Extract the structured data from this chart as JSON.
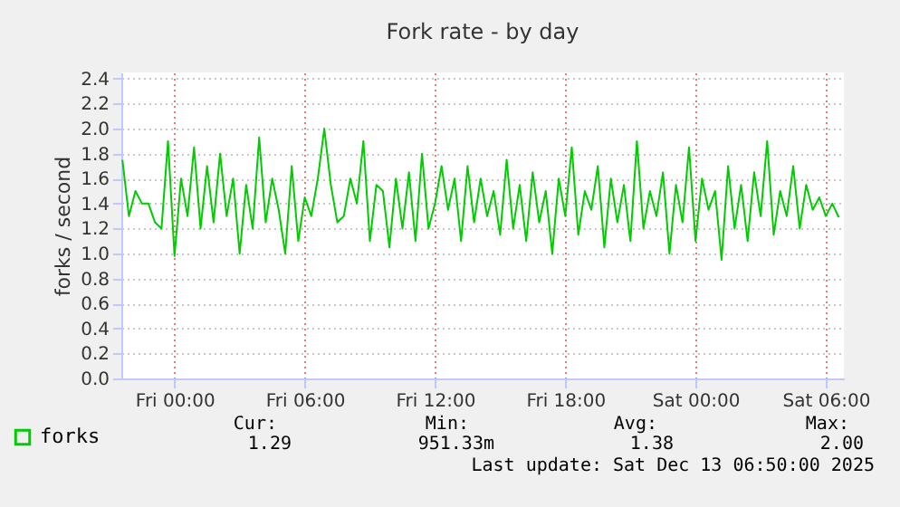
{
  "chart_data": {
    "type": "line",
    "title": "Fork rate - by day",
    "ylabel": "forks / second",
    "x": [
      "2025-12-11T21:36",
      "2025-12-11T21:54",
      "2025-12-11T22:12",
      "2025-12-11T22:30",
      "2025-12-11T22:48",
      "2025-12-11T23:06",
      "2025-12-11T23:24",
      "2025-12-11T23:42",
      "2025-12-12T00:00",
      "2025-12-12T00:18",
      "2025-12-12T00:36",
      "2025-12-12T00:54",
      "2025-12-12T01:12",
      "2025-12-12T01:30",
      "2025-12-12T01:48",
      "2025-12-12T02:06",
      "2025-12-12T02:24",
      "2025-12-12T02:42",
      "2025-12-12T03:00",
      "2025-12-12T03:18",
      "2025-12-12T03:36",
      "2025-12-12T03:54",
      "2025-12-12T04:12",
      "2025-12-12T04:30",
      "2025-12-12T04:48",
      "2025-12-12T05:06",
      "2025-12-12T05:24",
      "2025-12-12T05:42",
      "2025-12-12T06:00",
      "2025-12-12T06:18",
      "2025-12-12T06:36",
      "2025-12-12T06:54",
      "2025-12-12T07:12",
      "2025-12-12T07:30",
      "2025-12-12T07:48",
      "2025-12-12T08:06",
      "2025-12-12T08:24",
      "2025-12-12T08:42",
      "2025-12-12T09:00",
      "2025-12-12T09:18",
      "2025-12-12T09:36",
      "2025-12-12T09:54",
      "2025-12-12T10:12",
      "2025-12-12T10:30",
      "2025-12-12T10:48",
      "2025-12-12T11:06",
      "2025-12-12T11:24",
      "2025-12-12T11:42",
      "2025-12-12T12:00",
      "2025-12-12T12:18",
      "2025-12-12T12:36",
      "2025-12-12T12:54",
      "2025-12-12T13:12",
      "2025-12-12T13:30",
      "2025-12-12T13:48",
      "2025-12-12T14:06",
      "2025-12-12T14:24",
      "2025-12-12T14:42",
      "2025-12-12T15:00",
      "2025-12-12T15:18",
      "2025-12-12T15:36",
      "2025-12-12T15:54",
      "2025-12-12T16:12",
      "2025-12-12T16:30",
      "2025-12-12T16:48",
      "2025-12-12T17:06",
      "2025-12-12T17:24",
      "2025-12-12T17:42",
      "2025-12-12T18:00",
      "2025-12-12T18:18",
      "2025-12-12T18:36",
      "2025-12-12T18:54",
      "2025-12-12T19:12",
      "2025-12-12T19:30",
      "2025-12-12T19:48",
      "2025-12-12T20:06",
      "2025-12-12T20:24",
      "2025-12-12T20:42",
      "2025-12-12T21:00",
      "2025-12-12T21:18",
      "2025-12-12T21:36",
      "2025-12-12T21:54",
      "2025-12-12T22:12",
      "2025-12-12T22:30",
      "2025-12-12T22:48",
      "2025-12-12T23:06",
      "2025-12-12T23:24",
      "2025-12-12T23:42",
      "2025-12-13T00:00",
      "2025-12-13T00:18",
      "2025-12-13T00:36",
      "2025-12-13T00:54",
      "2025-12-13T01:12",
      "2025-12-13T01:30",
      "2025-12-13T01:48",
      "2025-12-13T02:06",
      "2025-12-13T02:24",
      "2025-12-13T02:42",
      "2025-12-13T03:00",
      "2025-12-13T03:18",
      "2025-12-13T03:36",
      "2025-12-13T03:54",
      "2025-12-13T04:12",
      "2025-12-13T04:30",
      "2025-12-13T04:48",
      "2025-12-13T05:06",
      "2025-12-13T05:24",
      "2025-12-13T05:42",
      "2025-12-13T06:00",
      "2025-12-13T06:18",
      "2025-12-13T06:36"
    ],
    "series": [
      {
        "name": "forks",
        "color": "#00cc00",
        "values": [
          1.75,
          1.3,
          1.5,
          1.4,
          1.4,
          1.25,
          1.2,
          1.9,
          0.98,
          1.6,
          1.3,
          1.85,
          1.2,
          1.7,
          1.25,
          1.8,
          1.3,
          1.6,
          1.0,
          1.55,
          1.2,
          1.93,
          1.25,
          1.6,
          1.35,
          1.0,
          1.7,
          1.1,
          1.45,
          1.3,
          1.6,
          2.0,
          1.55,
          1.25,
          1.3,
          1.6,
          1.4,
          1.9,
          1.1,
          1.55,
          1.5,
          1.05,
          1.6,
          1.2,
          1.65,
          1.1,
          1.8,
          1.2,
          1.4,
          1.7,
          1.35,
          1.6,
          1.1,
          1.7,
          1.25,
          1.6,
          1.3,
          1.5,
          1.15,
          1.75,
          1.2,
          1.55,
          1.1,
          1.65,
          1.25,
          1.5,
          1.0,
          1.6,
          1.3,
          1.85,
          1.15,
          1.5,
          1.35,
          1.7,
          1.05,
          1.6,
          1.25,
          1.55,
          1.1,
          1.9,
          1.2,
          1.5,
          1.3,
          1.65,
          1.0,
          1.55,
          1.25,
          1.85,
          1.1,
          1.6,
          1.35,
          1.5,
          0.95,
          1.7,
          1.2,
          1.55,
          1.1,
          1.65,
          1.3,
          1.9,
          1.15,
          1.5,
          1.3,
          1.7,
          1.2,
          1.55,
          1.35,
          1.45,
          1.3,
          1.4,
          1.29
        ]
      }
    ],
    "xlim": [
      "2025-12-11T21:33",
      "2025-12-13T06:50"
    ],
    "xticks": [
      {
        "value": "2025-12-12T00:00",
        "label": "Fri 00:00"
      },
      {
        "value": "2025-12-12T06:00",
        "label": "Fri 06:00"
      },
      {
        "value": "2025-12-12T12:00",
        "label": "Fri 12:00"
      },
      {
        "value": "2025-12-12T18:00",
        "label": "Fri 18:00"
      },
      {
        "value": "2025-12-13T00:00",
        "label": "Sat 00:00"
      },
      {
        "value": "2025-12-13T06:00",
        "label": "Sat 06:00"
      }
    ],
    "ylim": [
      0,
      2.45
    ],
    "yticks": [
      {
        "value": 0,
        "label": "0.0"
      },
      {
        "value": 0.2,
        "label": "0.2"
      },
      {
        "value": 0.4,
        "label": "0.4"
      },
      {
        "value": 0.6,
        "label": "0.6"
      },
      {
        "value": 0.8,
        "label": "0.8"
      },
      {
        "value": 1.0,
        "label": "1.0"
      },
      {
        "value": 1.2,
        "label": "1.2"
      },
      {
        "value": 1.4,
        "label": "1.4"
      },
      {
        "value": 1.6,
        "label": "1.6"
      },
      {
        "value": 1.8,
        "label": "1.8"
      },
      {
        "value": 2.0,
        "label": "2.0"
      },
      {
        "value": 2.2,
        "label": "2.2"
      },
      {
        "value": 2.4,
        "label": "2.4"
      }
    ],
    "grid": true,
    "legend": "bottom left",
    "line_style": "solid",
    "annotations": [
      "Cur:",
      "Min:",
      "Avg:",
      "Max:",
      "1.29",
      "951.33m",
      "1.38",
      "2.00",
      "Last update: Sat Dec 13 06:50:00 2025"
    ]
  }
}
